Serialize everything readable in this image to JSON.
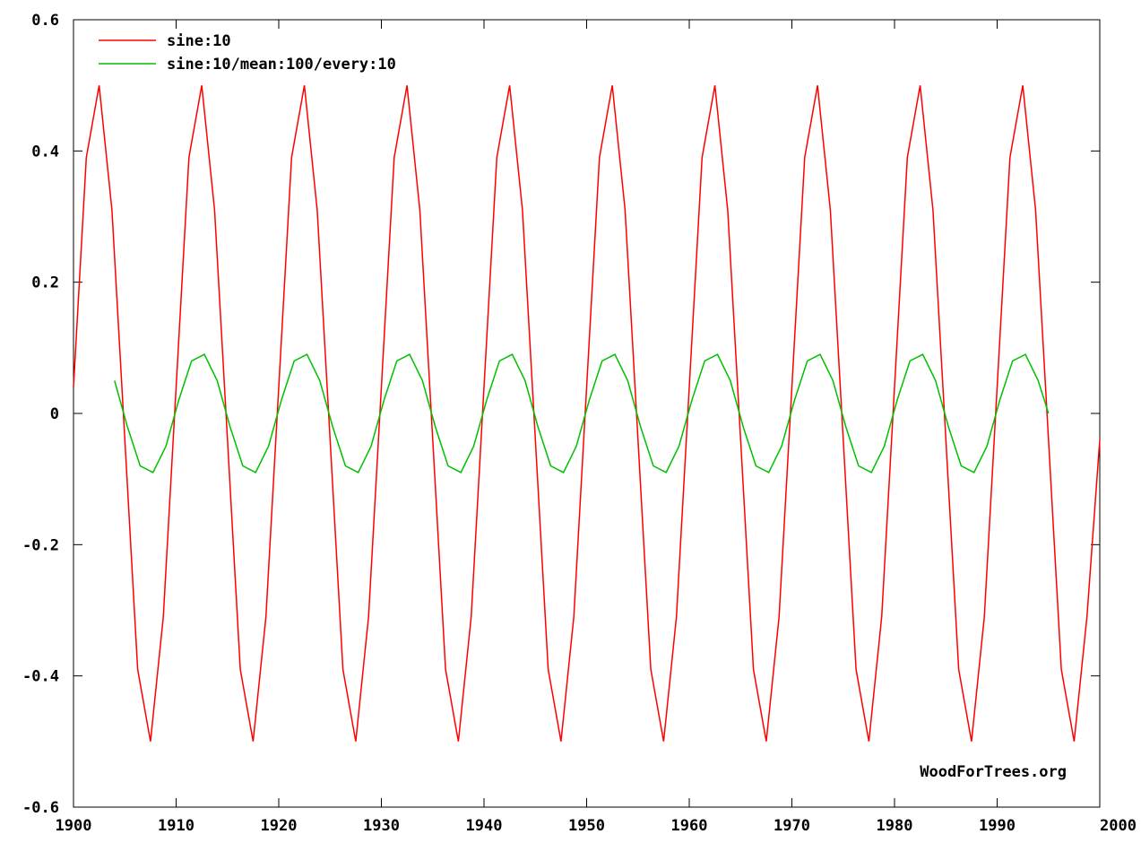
{
  "chart_data": {
    "type": "line",
    "title": "",
    "xlabel": "",
    "ylabel": "",
    "xlim": [
      1900,
      2000
    ],
    "ylim": [
      -0.6,
      0.6
    ],
    "grid": false,
    "legend_position": "top-left",
    "x_ticks": [
      1900,
      1910,
      1920,
      1930,
      1940,
      1950,
      1960,
      1970,
      1980,
      1990,
      2000
    ],
    "x_tick_labels": [
      "1900",
      "1910",
      "1920",
      "1930",
      "1940",
      "1950",
      "1960",
      "1970",
      "1980",
      "1990",
      "2000"
    ],
    "y_ticks": [
      0.6,
      0.4,
      0.2,
      0,
      -0.2,
      -0.4,
      -0.6
    ],
    "y_tick_labels": [
      "0.6",
      "0.4",
      "0.2",
      "0",
      "-0.2",
      "-0.4",
      "-0.6"
    ],
    "series": [
      {
        "name": "sine:10",
        "color": "#ff0000",
        "x": [
          1900,
          1901.25,
          1902.5,
          1903.75,
          1905,
          1906.25,
          1907.5,
          1908.75,
          1910,
          1911.25,
          1912.5,
          1913.75,
          1915,
          1916.25,
          1917.5,
          1918.75,
          1920,
          1921.25,
          1922.5,
          1923.75,
          1925,
          1926.25,
          1927.5,
          1928.75,
          1930,
          1931.25,
          1932.5,
          1933.75,
          1935,
          1936.25,
          1937.5,
          1938.75,
          1940,
          1941.25,
          1942.5,
          1943.75,
          1945,
          1946.25,
          1947.5,
          1948.75,
          1950,
          1951.25,
          1952.5,
          1953.75,
          1955,
          1956.25,
          1957.5,
          1958.75,
          1960,
          1961.25,
          1962.5,
          1963.75,
          1965,
          1966.25,
          1967.5,
          1968.75,
          1970,
          1971.25,
          1972.5,
          1973.75,
          1975,
          1976.25,
          1977.5,
          1978.75,
          1980,
          1981.25,
          1982.5,
          1983.75,
          1985,
          1986.25,
          1987.5,
          1988.75,
          1990,
          1991.25,
          1992.5,
          1993.75,
          1995,
          1996.25,
          1997.5,
          1998.75,
          2000
        ],
        "values": [
          0.04,
          0.39,
          0.5,
          0.31,
          -0.04,
          -0.39,
          -0.5,
          -0.31,
          0.04,
          0.39,
          0.5,
          0.31,
          -0.04,
          -0.39,
          -0.5,
          -0.31,
          0.04,
          0.39,
          0.5,
          0.31,
          -0.04,
          -0.39,
          -0.5,
          -0.31,
          0.04,
          0.39,
          0.5,
          0.31,
          -0.04,
          -0.39,
          -0.5,
          -0.31,
          0.04,
          0.39,
          0.5,
          0.31,
          -0.04,
          -0.39,
          -0.5,
          -0.31,
          0.04,
          0.39,
          0.5,
          0.31,
          -0.04,
          -0.39,
          -0.5,
          -0.31,
          0.04,
          0.39,
          0.5,
          0.31,
          -0.04,
          -0.39,
          -0.5,
          -0.31,
          0.04,
          0.39,
          0.5,
          0.31,
          -0.04,
          -0.39,
          -0.5,
          -0.31,
          0.04,
          0.39,
          0.5,
          0.31,
          -0.04,
          -0.39,
          -0.5,
          -0.31,
          0.04,
          0.39,
          0.5,
          0.31,
          -0.04,
          -0.39,
          -0.5,
          -0.31,
          -0.04
        ]
      },
      {
        "name": "sine:10/mean:100/every:10",
        "color": "#00c000",
        "x": [
          1904,
          1905.25,
          1906.5,
          1907.75,
          1909,
          1910.25,
          1911.5,
          1912.75,
          1914,
          1915.25,
          1916.5,
          1917.75,
          1919,
          1920.25,
          1921.5,
          1922.75,
          1924,
          1925.25,
          1926.5,
          1927.75,
          1929,
          1930.25,
          1931.5,
          1932.75,
          1934,
          1935.25,
          1936.5,
          1937.75,
          1939,
          1940.25,
          1941.5,
          1942.75,
          1944,
          1945.25,
          1946.5,
          1947.75,
          1949,
          1950.25,
          1951.5,
          1952.75,
          1954,
          1955.25,
          1956.5,
          1957.75,
          1959,
          1960.25,
          1961.5,
          1962.75,
          1964,
          1965.25,
          1966.5,
          1967.75,
          1969,
          1970.25,
          1971.5,
          1972.75,
          1974,
          1975.25,
          1976.5,
          1977.75,
          1979,
          1980.25,
          1981.5,
          1982.75,
          1984,
          1985.25,
          1986.5,
          1987.75,
          1989,
          1990.25,
          1991.5,
          1992.75,
          1994,
          1995
        ],
        "values": [
          0.05,
          -0.02,
          -0.08,
          -0.09,
          -0.05,
          0.02,
          0.08,
          0.09,
          0.05,
          -0.02,
          -0.08,
          -0.09,
          -0.05,
          0.02,
          0.08,
          0.09,
          0.05,
          -0.02,
          -0.08,
          -0.09,
          -0.05,
          0.02,
          0.08,
          0.09,
          0.05,
          -0.02,
          -0.08,
          -0.09,
          -0.05,
          0.02,
          0.08,
          0.09,
          0.05,
          -0.02,
          -0.08,
          -0.09,
          -0.05,
          0.02,
          0.08,
          0.09,
          0.05,
          -0.02,
          -0.08,
          -0.09,
          -0.05,
          0.02,
          0.08,
          0.09,
          0.05,
          -0.02,
          -0.08,
          -0.09,
          -0.05,
          0.02,
          0.08,
          0.09,
          0.05,
          -0.02,
          -0.08,
          -0.09,
          -0.05,
          0.02,
          0.08,
          0.09,
          0.05,
          -0.02,
          -0.08,
          -0.09,
          -0.05,
          0.02,
          0.08,
          0.09,
          0.05,
          0.0
        ]
      }
    ],
    "watermark": "WoodForTrees.org"
  }
}
